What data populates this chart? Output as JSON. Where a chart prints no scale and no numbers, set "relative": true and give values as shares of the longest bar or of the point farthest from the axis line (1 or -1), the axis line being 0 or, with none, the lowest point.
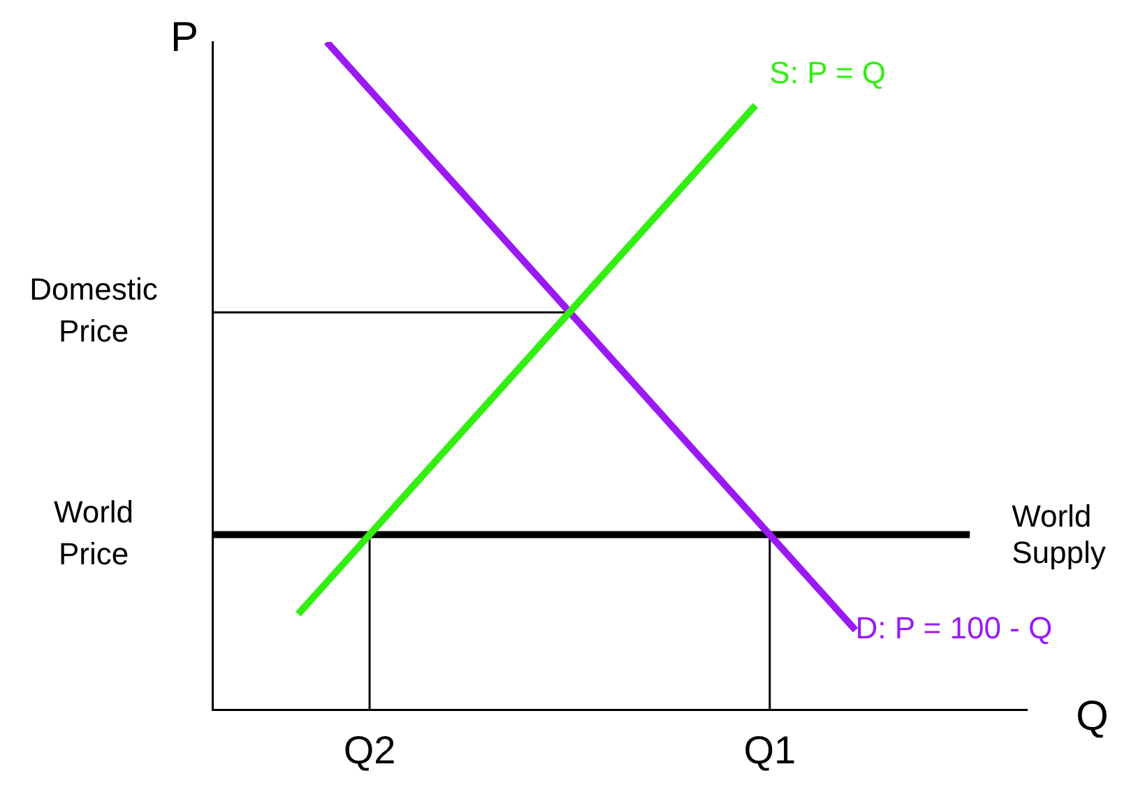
{
  "chart_data": {
    "type": "line",
    "xlabel": "Q",
    "ylabel": "P",
    "relative": true,
    "categories": [
      null,
      null,
      null,
      null,
      null,
      null,
      null,
      null,
      null,
      null,
      null,
      "Q2",
      null,
      null,
      null,
      null,
      null,
      null,
      null,
      null,
      null,
      null,
      null,
      null,
      null,
      null,
      null,
      null,
      null,
      null,
      null,
      null,
      null,
      null,
      null,
      null,
      null,
      null,
      null,
      "Q1",
      null,
      null,
      null,
      null,
      null,
      null,
      null,
      null,
      null,
      null,
      null,
      null,
      null,
      null,
      null,
      null,
      null,
      null
    ],
    "annotations": [
      "Domestic Price",
      "World Price"
    ],
    "grid": false,
    "legend": false,
    "marker": "none",
    "line_style": "solid",
    "series": [
      {
        "name": "S: P = Q",
        "color": "#33ee11",
        "values": [
          null,
          null,
          null,
          null,
          null,
          null,
          0.143,
          null,
          null,
          null,
          null,
          null,
          null,
          null,
          null,
          null,
          null,
          null,
          null,
          null,
          null,
          null,
          null,
          null,
          null,
          null,
          null,
          null,
          null,
          null,
          null,
          null,
          null,
          null,
          null,
          null,
          null,
          null,
          0.905,
          null,
          null,
          null,
          null,
          null,
          null,
          null,
          null,
          null,
          null,
          null,
          null,
          null,
          null,
          null,
          null,
          null,
          null,
          null
        ]
      },
      {
        "name": "D: P = 100 - Q",
        "color": "#9b19f5",
        "values": [
          null,
          null,
          null,
          null,
          null,
          null,
          null,
          null,
          1,
          null,
          null,
          null,
          null,
          null,
          null,
          null,
          null,
          null,
          null,
          null,
          null,
          null,
          null,
          null,
          null,
          null,
          null,
          null,
          null,
          null,
          null,
          null,
          null,
          null,
          null,
          null,
          null,
          null,
          null,
          null,
          null,
          null,
          null,
          null,
          null,
          0.119,
          null,
          null,
          null,
          null,
          null,
          null,
          null,
          null,
          null,
          null,
          null,
          null
        ]
      },
      {
        "name": "World Supply",
        "color": "#000000",
        "values": [
          0.262,
          null,
          null,
          null,
          null,
          null,
          null,
          null,
          null,
          null,
          null,
          null,
          null,
          null,
          null,
          null,
          null,
          null,
          null,
          null,
          null,
          null,
          null,
          null,
          null,
          null,
          null,
          null,
          null,
          null,
          null,
          null,
          null,
          null,
          null,
          null,
          null,
          null,
          null,
          null,
          null,
          null,
          null,
          null,
          null,
          null,
          null,
          null,
          null,
          null,
          null,
          null,
          null,
          0.262,
          null,
          null,
          null,
          null
        ]
      },
      {
        "color": "#000000",
        "values": [
          0.595,
          null,
          null,
          null,
          null,
          null,
          null,
          null,
          null,
          null,
          null,
          null,
          null,
          null,
          null,
          null,
          null,
          null,
          null,
          null,
          null,
          null,
          null,
          null,
          null,
          0.595,
          null,
          null,
          null,
          null,
          null,
          null,
          null,
          null,
          null,
          null,
          null,
          null,
          null,
          null,
          null,
          null,
          null,
          null,
          null,
          null,
          null,
          null,
          null,
          null,
          null,
          null,
          null,
          null,
          null,
          null,
          null,
          null
        ]
      },
      {
        "color": "#000000",
        "x": [
          "Q2",
          "Q2"
        ],
        "values": [
          0,
          0.262
        ]
      },
      {
        "color": "#000000",
        "x": [
          "Q1",
          "Q1"
        ],
        "values": [
          0,
          0.262
        ]
      }
    ]
  }
}
